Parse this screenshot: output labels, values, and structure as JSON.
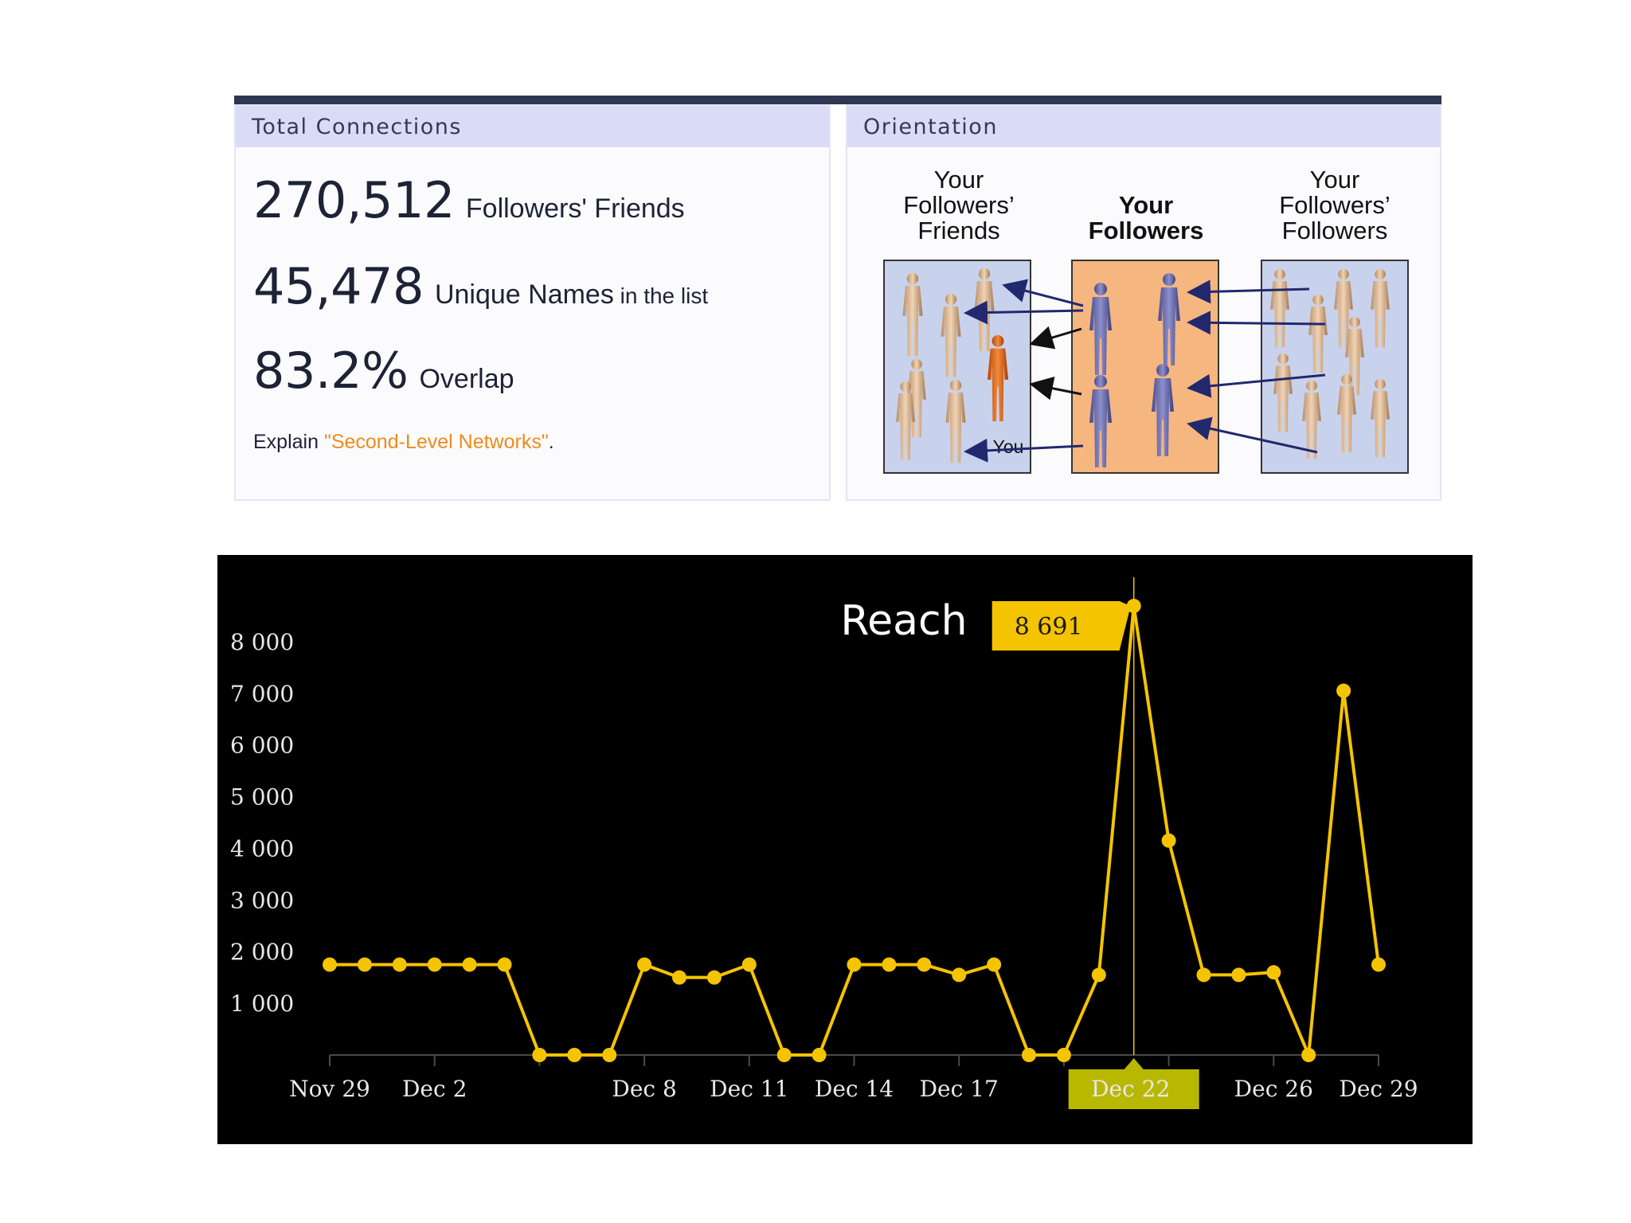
{
  "left_panel": {
    "header": "Total Connections",
    "stats": [
      {
        "number": "270,512",
        "label": "Followers' Friends",
        "suffix": ""
      },
      {
        "number": "45,478",
        "label": "Unique Names",
        "suffix": " in the list"
      },
      {
        "number": "83.2%",
        "label": "Overlap",
        "suffix": ""
      }
    ],
    "explain_prefix": "Explain ",
    "explain_link": "\"Second-Level Networks\"",
    "explain_suffix": "."
  },
  "right_panel": {
    "header": "Orientation",
    "columns": [
      {
        "lines": [
          "Your",
          "Followers’",
          "Friends"
        ],
        "bold": false
      },
      {
        "lines": [
          "Your",
          "Followers"
        ],
        "bold": true
      },
      {
        "lines": [
          "Your",
          "Followers’",
          "Followers"
        ],
        "bold": false
      }
    ],
    "you_label": "You"
  },
  "colors": {
    "line": "#f5c400",
    "tooltip_bg": "#f5c400",
    "x_highlight_bg": "#b9b800",
    "header_bg": "#dadcf7",
    "topbar": "#2f3654",
    "link": "#f08a1c"
  },
  "chart_data": {
    "type": "line",
    "title": "Reach",
    "ylim": [
      0,
      9000
    ],
    "y_ticks": [
      "1 000",
      "2 000",
      "3 000",
      "4 000",
      "5 000",
      "6 000",
      "7 000",
      "8 000"
    ],
    "y_tick_values": [
      1000,
      2000,
      3000,
      4000,
      5000,
      6000,
      7000,
      8000
    ],
    "x_tick_labels": [
      {
        "day": 29,
        "label": "Nov 29"
      },
      {
        "day": 32,
        "label": "Dec 2"
      },
      {
        "day": 38,
        "label": "Dec 8"
      },
      {
        "day": 41,
        "label": "Dec 11"
      },
      {
        "day": 44,
        "label": "Dec 14"
      },
      {
        "day": 47,
        "label": "Dec 17"
      },
      {
        "day": 56,
        "label": "Dec 26"
      },
      {
        "day": 59,
        "label": "Dec 29"
      }
    ],
    "highlight": {
      "day": 52,
      "label": "Dec 22",
      "tooltip": "8 691"
    },
    "series": [
      {
        "x": [
          "Nov 29",
          "Nov 30",
          "Dec 1",
          "Dec 2",
          "Dec 3",
          "Dec 4",
          "Dec 5",
          "Dec 6",
          "Dec 7",
          "Dec 8",
          "Dec 9",
          "Dec 10",
          "Dec 11",
          "Dec 12",
          "Dec 13",
          "Dec 14",
          "Dec 15",
          "Dec 16",
          "Dec 17",
          "Dec 18",
          "Dec 19",
          "Dec 20",
          "Dec 21",
          "Dec 22",
          "Dec 23",
          "Dec 24",
          "Dec 25",
          "Dec 26",
          "Dec 27",
          "Dec 28",
          "Dec 29"
        ],
        "values": [
          1750,
          1750,
          1750,
          1750,
          1750,
          1750,
          0,
          0,
          0,
          1750,
          1500,
          1500,
          1750,
          0,
          0,
          1750,
          1750,
          1750,
          1550,
          1750,
          0,
          0,
          1550,
          8691,
          4150,
          1550,
          1550,
          1600,
          0,
          7050,
          1750
        ]
      }
    ]
  }
}
